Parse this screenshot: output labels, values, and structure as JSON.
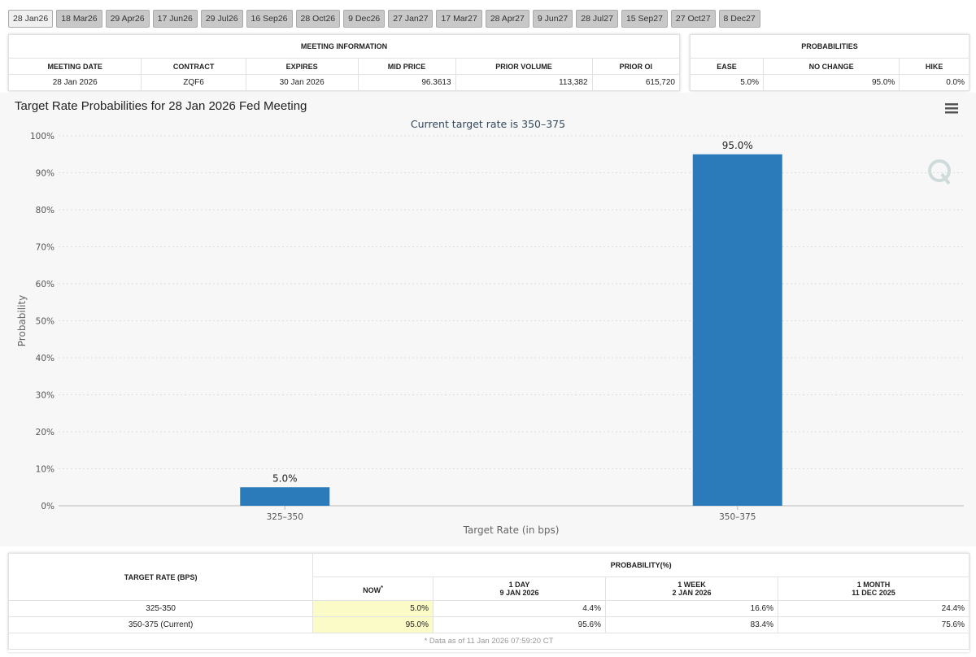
{
  "tabs": [
    "28 Jan26",
    "18 Mar26",
    "29 Apr26",
    "17 Jun26",
    "29 Jul26",
    "16 Sep26",
    "28 Oct26",
    "9 Dec26",
    "27 Jan27",
    "17 Mar27",
    "28 Apr27",
    "9 Jun27",
    "28 Jul27",
    "15 Sep27",
    "27 Oct27",
    "8 Dec27"
  ],
  "meeting_info": {
    "title": "MEETING INFORMATION",
    "headers": [
      "MEETING DATE",
      "CONTRACT",
      "EXPIRES",
      "MID PRICE",
      "PRIOR VOLUME",
      "PRIOR OI"
    ],
    "row": [
      "28 Jan 2026",
      "ZQF6",
      "30 Jan 2026",
      "96.3613",
      "113,382",
      "615,720"
    ]
  },
  "probabilities": {
    "title": "PROBABILITIES",
    "headers": [
      "EASE",
      "NO CHANGE",
      "HIKE"
    ],
    "row": [
      "5.0%",
      "95.0%",
      "0.0%"
    ]
  },
  "chart_data": {
    "type": "bar",
    "title": "Target Rate Probabilities for 28 Jan 2026 Fed Meeting",
    "subtitle": "Current target rate is 350–375",
    "x_label": "Target Rate (in bps)",
    "y_label": "Probability",
    "categories": [
      "325–350",
      "350–375"
    ],
    "values": [
      5,
      95
    ],
    "value_labels": [
      "5.0%",
      "95.0%"
    ],
    "color": "#2b7bba",
    "ylim": [
      0,
      100
    ],
    "yticks": [
      {
        "value": 0,
        "label": "0%"
      },
      {
        "value": 10,
        "label": "10%"
      },
      {
        "value": 20,
        "label": "20%"
      },
      {
        "value": 30,
        "label": "30%"
      },
      {
        "value": 40,
        "label": "40%"
      },
      {
        "value": 50,
        "label": "50%"
      },
      {
        "value": 60,
        "label": "60%"
      },
      {
        "value": 70,
        "label": "70%"
      },
      {
        "value": 80,
        "label": "80%"
      },
      {
        "value": 90,
        "label": "90%"
      },
      {
        "value": 100,
        "label": "100%"
      }
    ],
    "grid": true
  },
  "rate_table": {
    "row_header": "TARGET RATE (BPS)",
    "title": "PROBABILITY(%)",
    "columns": [
      [
        "NOW"
      ],
      [
        "1 DAY",
        "9 JAN 2026"
      ],
      [
        "1 WEEK",
        "2 JAN 2026"
      ],
      [
        "1 MONTH",
        "11 DEC 2025"
      ]
    ],
    "now_note": "*",
    "rows": [
      [
        "325-350",
        "5.0%",
        "4.4%",
        "16.6%",
        "24.4%"
      ],
      [
        "350-375 (Current)",
        "95.0%",
        "95.6%",
        "83.4%",
        "75.6%"
      ]
    ],
    "footnote": "* Data as of 11 Jan 2026 07:59:20 CT"
  }
}
